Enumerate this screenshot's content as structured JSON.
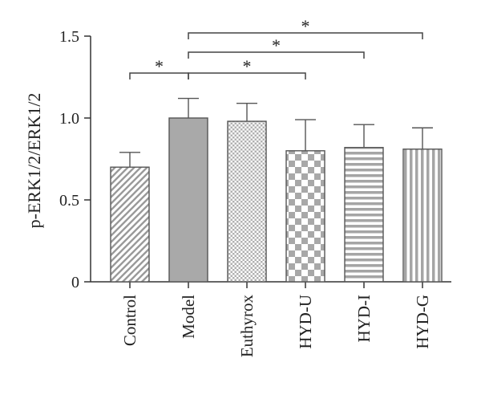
{
  "chart_data": {
    "type": "bar",
    "title": "",
    "xlabel": "",
    "ylabel": "p-ERK1/2/ERK1/2",
    "ylim": [
      0,
      1.5
    ],
    "yticks": [
      0,
      0.5,
      1.0,
      1.5
    ],
    "ytick_labels": [
      "0",
      "0.5",
      "1.0",
      "1.5"
    ],
    "categories": [
      "Control",
      "Model",
      "Euthyrox",
      "HYD-U",
      "HYD-I",
      "HYD-G"
    ],
    "values": [
      0.7,
      1.0,
      0.98,
      0.8,
      0.82,
      0.81
    ],
    "errors": [
      0.09,
      0.12,
      0.11,
      0.19,
      0.14,
      0.13
    ],
    "patterns": [
      "diagonal-stripes",
      "solid",
      "dots",
      "checkerboard",
      "horizontal-stripes",
      "vertical-stripes"
    ],
    "bar_fill_color": "#a9a9a9",
    "bar_stroke_color": "#555555",
    "significance": [
      {
        "from": "Control",
        "to": "Model",
        "label": "*"
      },
      {
        "from": "Model",
        "to": "HYD-U",
        "label": "*"
      },
      {
        "from": "Model",
        "to": "HYD-I",
        "label": "*"
      },
      {
        "from": "Model",
        "to": "HYD-G",
        "label": "*"
      }
    ]
  }
}
